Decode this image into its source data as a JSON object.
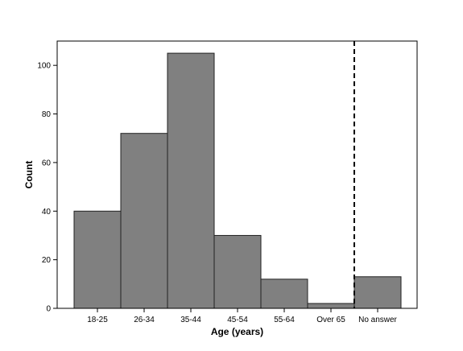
{
  "chart_data": {
    "type": "bar",
    "categories": [
      "18-25",
      "26-34",
      "35-44",
      "45-54",
      "55-64",
      "Over 65",
      "No answer"
    ],
    "values": [
      40,
      72,
      105,
      30,
      12,
      2,
      13
    ],
    "xlabel": "Age (years)",
    "ylabel": "Count",
    "ylim": [
      0,
      110
    ],
    "yticks": [
      0,
      20,
      40,
      60,
      80,
      100
    ],
    "grid": false,
    "legend": "none",
    "bar_color": "#808080",
    "bar_edge_color": "#222222",
    "divider": {
      "style": "dashed",
      "between": [
        "Over 65",
        "No answer"
      ]
    }
  }
}
